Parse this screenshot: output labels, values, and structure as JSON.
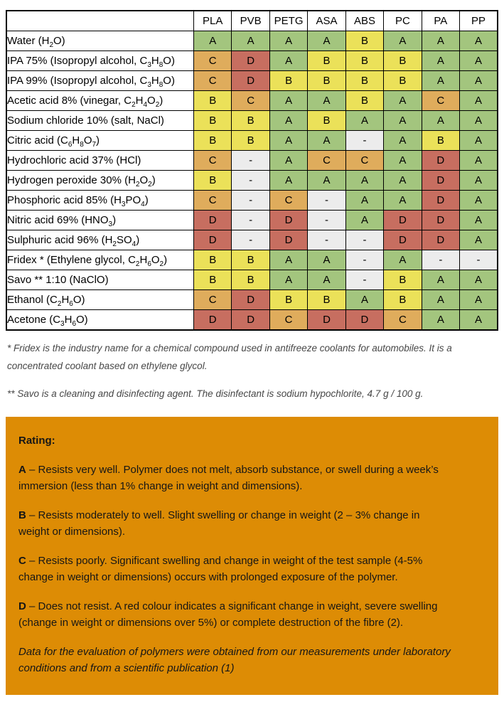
{
  "table": {
    "columns": [
      "PLA",
      "PVB",
      "PETG",
      "ASA",
      "ABS",
      "PC",
      "PA",
      "PP"
    ],
    "rows": [
      {
        "chemical": "Water (H_2_O)",
        "ratings": [
          "A",
          "A",
          "A",
          "A",
          "B",
          "A",
          "A",
          "A"
        ]
      },
      {
        "chemical": "IPA 75% (Isopropyl alcohol, C_3_H_8_O)",
        "ratings": [
          "C",
          "D",
          "A",
          "B",
          "B",
          "B",
          "A",
          "A"
        ]
      },
      {
        "chemical": "IPA 99% (Isopropyl alcohol, C_3_H_8_O)",
        "ratings": [
          "C",
          "D",
          "B",
          "B",
          "B",
          "B",
          "A",
          "A"
        ]
      },
      {
        "chemical": "Acetic acid 8% (vinegar, C_2_H_4_O_2_)",
        "ratings": [
          "B",
          "C",
          "A",
          "A",
          "B",
          "A",
          "C",
          "A"
        ]
      },
      {
        "chemical": "Sodium chloride 10% (salt, NaCl)",
        "ratings": [
          "B",
          "B",
          "A",
          "B",
          "A",
          "A",
          "A",
          "A"
        ]
      },
      {
        "chemical": "Citric acid (C_6_H_8_O_7_)",
        "ratings": [
          "B",
          "B",
          "A",
          "A",
          "-",
          "A",
          "B",
          "A"
        ]
      },
      {
        "chemical": "Hydrochloric acid 37% (HCl)",
        "ratings": [
          "C",
          "-",
          "A",
          "C",
          "C",
          "A",
          "D",
          "A"
        ]
      },
      {
        "chemical": "Hydrogen peroxide 30% (H_2_O_2_)",
        "ratings": [
          "B",
          "-",
          "A",
          "A",
          "A",
          "A",
          "D",
          "A"
        ]
      },
      {
        "chemical": "Phosphoric acid 85% (H_3_PO_4_)",
        "ratings": [
          "C",
          "-",
          "C",
          "-",
          "A",
          "A",
          "D",
          "A"
        ]
      },
      {
        "chemical": "Nitric acid 69% (HNO_3_)",
        "ratings": [
          "D",
          "-",
          "D",
          "-",
          "A",
          "D",
          "D",
          "A"
        ]
      },
      {
        "chemical": "Sulphuric acid 96% (H_2_SO_4_)",
        "ratings": [
          "D",
          "-",
          "D",
          "-",
          "-",
          "D",
          "D",
          "A"
        ]
      },
      {
        "chemical": "Fridex * (Ethylene glycol, C_2_H_6_O_2_)",
        "ratings": [
          "B",
          "B",
          "A",
          "A",
          "-",
          "A",
          "-",
          "-"
        ]
      },
      {
        "chemical": "Savo ** 1:10 (NaClO)",
        "ratings": [
          "B",
          "B",
          "A",
          "A",
          "-",
          "B",
          "A",
          "A"
        ]
      },
      {
        "chemical": "Ethanol (C_2_H_6_O)",
        "ratings": [
          "C",
          "D",
          "B",
          "B",
          "A",
          "B",
          "A",
          "A"
        ]
      },
      {
        "chemical": "Acetone (C_3_H_6_O)",
        "ratings": [
          "D",
          "D",
          "C",
          "D",
          "D",
          "C",
          "A",
          "A"
        ]
      }
    ],
    "rating_colors": {
      "A": "#a3c57e",
      "B": "#ebe159",
      "C": "#dfac5c",
      "D": "#c76e60",
      "-": "#ececec"
    }
  },
  "footnotes": [
    "* Fridex is the industry name for a chemical compound used in antifreeze coolants for automobiles. It is a concentrated coolant based on ethylene glycol.",
    "** Savo is a cleaning and disinfecting agent. The disinfectant is sodium hypochlorite, 4.7 g / 100 g."
  ],
  "legend": {
    "background_color": "#dd8c05",
    "title": "Rating:",
    "items": [
      {
        "letter": "A",
        "text": "– Resists very well. Polymer does not melt, absorb substance, or swell during a week’s immersion (less than 1% change in weight and dimensions)."
      },
      {
        "letter": "B",
        "text": "– Resists moderately to well. Slight swelling or change in weight (2 – 3% change in weight or dimensions)."
      },
      {
        "letter": "C",
        "text": "– Resists poorly. Significant swelling and change in weight of the test sample (4-5% change in weight or dimensions) occurs with prolonged exposure of the polymer."
      },
      {
        "letter": "D",
        "text": "– Does not resist. A red colour indicates a significant change in weight, severe swelling (change in weight or dimensions over 5%) or complete destruction of the fibre (2)."
      }
    ],
    "note": "Data for the evaluation of polymers were obtained from our measurements under laboratory conditions and from a scientific publication (1)"
  }
}
